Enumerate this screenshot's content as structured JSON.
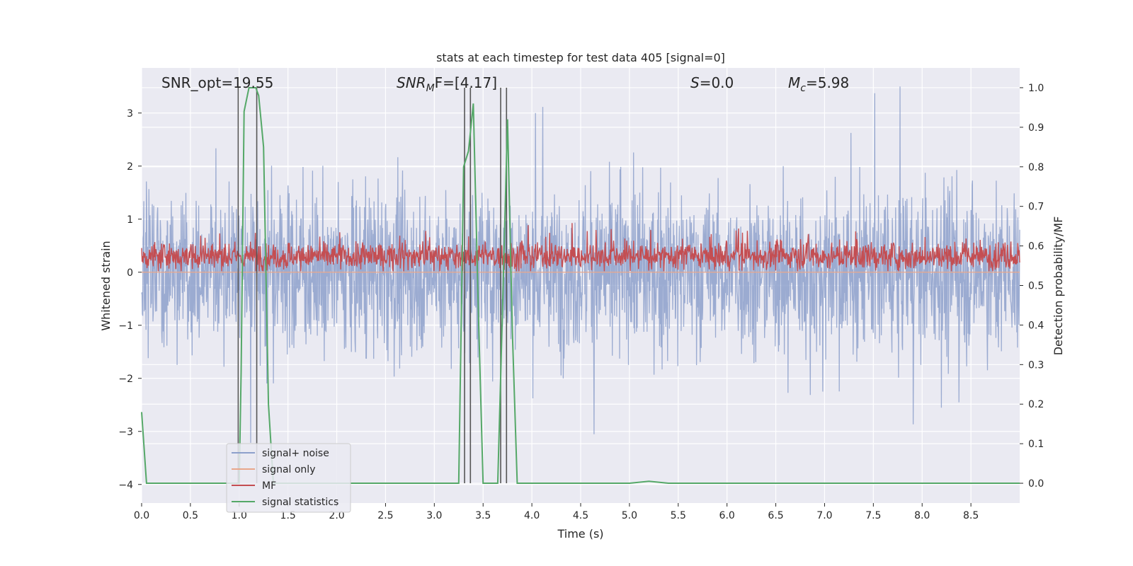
{
  "chart_data": {
    "type": "line",
    "title": "stats at each timestep for test data 405 [signal=0]",
    "xlabel": "Time (s)",
    "ylabel": "Whitened strain",
    "y2label": "Detection probability/MF",
    "xlim": [
      0.0,
      9.0
    ],
    "ylim": [
      -4.35,
      3.85
    ],
    "y2lim": [
      -0.05,
      1.05
    ],
    "xticks": [
      "0.0",
      "0.5",
      "1.0",
      "1.5",
      "2.0",
      "2.5",
      "3.0",
      "3.5",
      "4.0",
      "4.5",
      "5.0",
      "5.5",
      "6.0",
      "6.5",
      "7.0",
      "7.5",
      "8.0",
      "8.5"
    ],
    "yticks": [
      "3",
      "2",
      "1",
      "0",
      "−1",
      "−2",
      "−3",
      "−4"
    ],
    "y2ticks": [
      "1.0",
      "0.9",
      "0.8",
      "0.7",
      "0.6",
      "0.5",
      "0.4",
      "0.3",
      "0.2",
      "0.1",
      "0.0"
    ],
    "grid": true,
    "legend_position": "lower-left",
    "annotations": {
      "snr_opt": "SNR_opt=19.55",
      "snr_mf_main": "SNR",
      "snr_mf_sub": "M",
      "snr_mf_tail": "F=[4.17]",
      "s_main": "S",
      "s_tail": "=0.0",
      "mc_main": "M",
      "mc_sub": "c",
      "mc_tail": "=5.98"
    },
    "series": [
      {
        "name": "signal+ noise",
        "color": "#8da0cb",
        "description_value": "whitened strain noise, approximately between -2 and 2.5",
        "amplitude_range": [
          -4.0,
          3.5
        ]
      },
      {
        "name": "signal only",
        "color": "#e9a68b",
        "values_constant": 0.0
      },
      {
        "name": "MF",
        "color": "#c44e52",
        "amplitude_range": [
          0.0,
          0.95
        ]
      },
      {
        "name": "signal statistics",
        "color": "#55a868",
        "axis": "right",
        "x": [
          0.0,
          0.05,
          0.1,
          0.15,
          0.9,
          1.0,
          1.02,
          1.05,
          1.1,
          1.17,
          1.2,
          1.25,
          1.3,
          1.35,
          1.4,
          3.0,
          3.25,
          3.3,
          3.35,
          3.4,
          3.45,
          3.5,
          3.55,
          3.6,
          3.65,
          3.7,
          3.75,
          3.8,
          3.85,
          3.9,
          5.0,
          5.2,
          5.4,
          9.0
        ],
        "values": [
          0.18,
          0.0,
          0.0,
          0.0,
          0.0,
          0.0,
          0.28,
          0.94,
          1.0,
          1.0,
          0.98,
          0.85,
          0.2,
          0.0,
          0.0,
          0.0,
          0.0,
          0.8,
          0.84,
          0.96,
          0.45,
          0.0,
          0.0,
          0.0,
          0.0,
          0.45,
          0.92,
          0.38,
          0.0,
          0.0,
          0.0,
          0.005,
          0.0,
          0.0
        ]
      }
    ],
    "vertical_lines_x": [
      0.99,
      1.18,
      3.31,
      3.37,
      3.68,
      3.74
    ]
  }
}
